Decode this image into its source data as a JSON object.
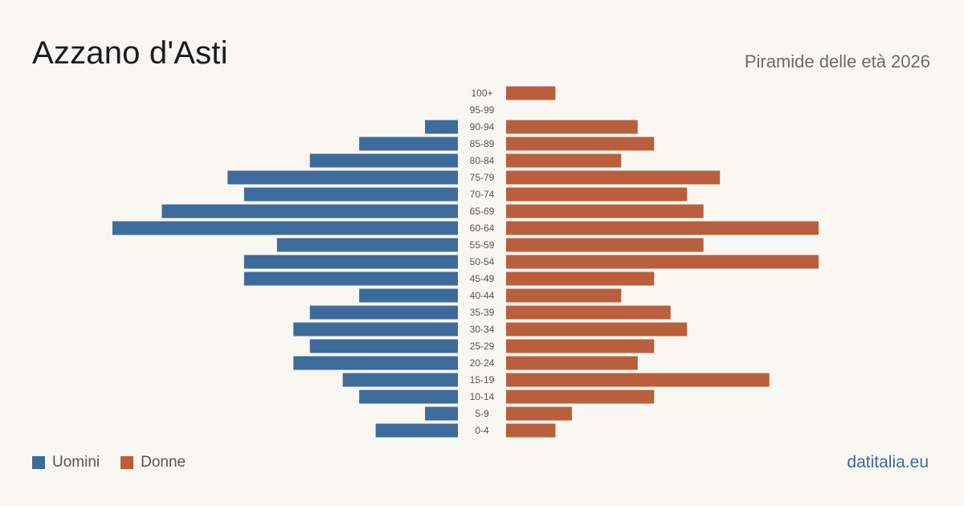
{
  "header": {
    "title": "Azzano d'Asti",
    "subtitle": "Piramide delle età 2026"
  },
  "footer": {
    "source": "datitalia.eu"
  },
  "colors": {
    "men": "#3d6b9b",
    "women": "#b95f3d",
    "label": "#555555",
    "background": "#f9f7f2"
  },
  "legend": {
    "men_label": "Uomini",
    "women_label": "Donne"
  },
  "chart_data": {
    "type": "bar",
    "orientation": "horizontal-pyramid",
    "categories": [
      "100+",
      "95-99",
      "90-94",
      "85-89",
      "80-84",
      "75-79",
      "70-74",
      "65-69",
      "60-64",
      "55-59",
      "50-54",
      "45-49",
      "40-44",
      "35-39",
      "30-34",
      "25-29",
      "20-24",
      "15-19",
      "10-14",
      "5-9",
      "0-4"
    ],
    "series": [
      {
        "name": "Uomini",
        "values": [
          0,
          0,
          2,
          6,
          9,
          14,
          13,
          18,
          21,
          11,
          13,
          13,
          6,
          9,
          10,
          9,
          10,
          7,
          6,
          2,
          5
        ]
      },
      {
        "name": "Donne",
        "values": [
          3,
          0,
          8,
          9,
          7,
          13,
          11,
          12,
          19,
          12,
          19,
          9,
          7,
          10,
          11,
          9,
          8,
          16,
          9,
          4,
          3
        ]
      }
    ],
    "grid": false,
    "legend_position": "bottom-left"
  }
}
